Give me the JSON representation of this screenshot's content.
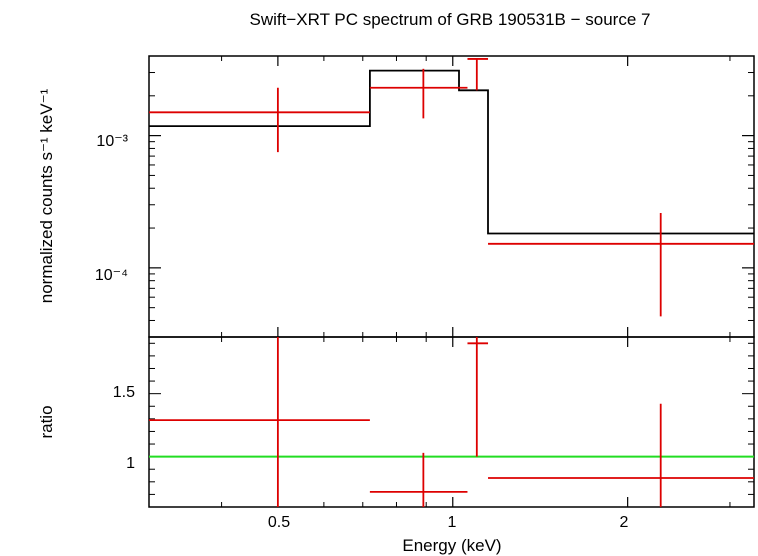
{
  "chart_data": [
    {
      "type": "line",
      "title": "Swift−XRT PC spectrum of GRB 190531B − source 7",
      "ylabel": "normalized counts s⁻¹ keV⁻¹",
      "yscale": "log",
      "xscale": "log",
      "xlim": [
        0.3,
        3.3
      ],
      "ylim": [
        3e-05,
        0.004
      ],
      "ytick_labels": [
        "10⁻³",
        "10⁻⁴"
      ],
      "series": [
        {
          "role": "data",
          "color": "#dd0000",
          "points": [
            {
              "x": 0.5,
              "xlo": 0.3,
              "xhi": 0.72,
              "y": 0.0015,
              "ylo": 0.00075,
              "yhi": 0.0023
            },
            {
              "x": 0.89,
              "xlo": 0.72,
              "xhi": 1.06,
              "y": 0.0023,
              "ylo": 0.00135,
              "yhi": 0.0032
            },
            {
              "x": 1.1,
              "xlo": 1.06,
              "xhi": 1.15,
              "y": 0.0038,
              "ylo": 0.0022,
              "yhi": 0.0038
            },
            {
              "x": 2.28,
              "xlo": 1.15,
              "xhi": 3.3,
              "y": 0.000152,
              "ylo": 4.3e-05,
              "yhi": 0.00026
            }
          ]
        },
        {
          "role": "model",
          "color": "#000000",
          "steps": [
            {
              "xlo": 0.3,
              "xhi": 0.72,
              "y": 0.00118
            },
            {
              "xlo": 0.72,
              "xhi": 1.025,
              "y": 0.0031
            },
            {
              "xlo": 1.025,
              "xhi": 1.15,
              "y": 0.0022
            },
            {
              "xlo": 1.15,
              "xhi": 3.3,
              "y": 0.000182
            }
          ]
        }
      ]
    },
    {
      "type": "line",
      "xlabel": "Energy (keV)",
      "ylabel": "ratio",
      "xscale": "log",
      "xlim": [
        0.3,
        3.3
      ],
      "ylim": [
        0.6,
        1.95
      ],
      "xticks": [
        0.5,
        1,
        2
      ],
      "xtick_labels": [
        "0.5",
        "1",
        "2"
      ],
      "yticks": [
        1,
        1.5
      ],
      "ytick_labels": [
        "1",
        "1.5"
      ],
      "reference_line": {
        "y": 1,
        "color": "#22dd22"
      },
      "series": [
        {
          "role": "ratio",
          "color": "#dd0000",
          "points": [
            {
              "x": 0.5,
              "xlo": 0.3,
              "xhi": 0.72,
              "y": 1.29,
              "ylo": 0.6,
              "yhi": 1.95
            },
            {
              "x": 0.89,
              "xlo": 0.72,
              "xhi": 1.06,
              "y": 0.72,
              "ylo": 0.6,
              "yhi": 1.03
            },
            {
              "x": 1.1,
              "xlo": 1.06,
              "xhi": 1.15,
              "y": 1.9,
              "ylo": 1.0,
              "yhi": 1.95
            },
            {
              "x": 2.28,
              "xlo": 1.15,
              "xhi": 3.3,
              "y": 0.83,
              "ylo": 0.6,
              "yhi": 1.42
            }
          ]
        }
      ]
    }
  ]
}
